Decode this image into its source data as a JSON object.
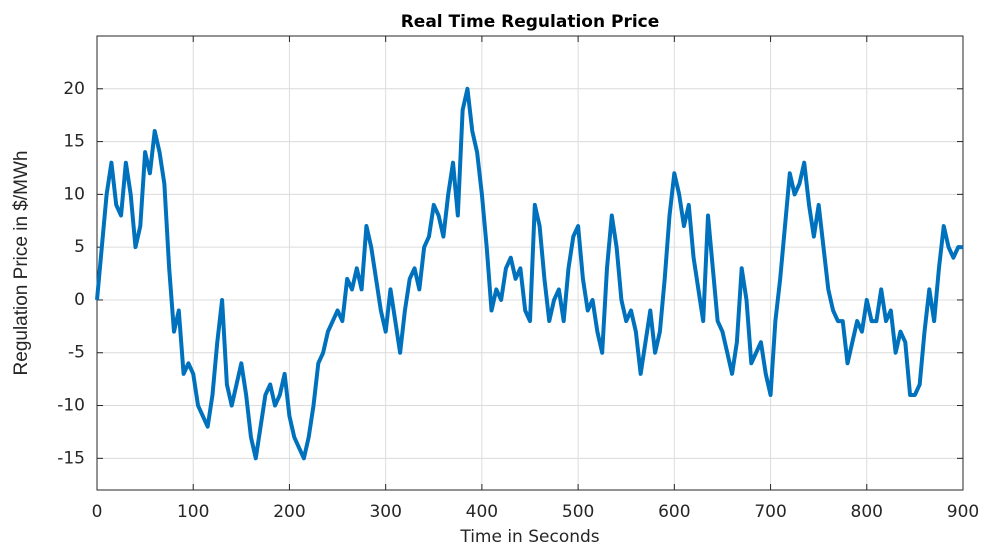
{
  "chart_data": {
    "type": "line",
    "title": "Real Time Regulation Price",
    "x_label": "Time in Seconds",
    "y_label": "Regulation Price in $/MWh",
    "x": [
      0,
      5,
      10,
      15,
      20,
      25,
      30,
      35,
      40,
      45,
      50,
      55,
      60,
      65,
      70,
      75,
      80,
      85,
      90,
      95,
      100,
      105,
      110,
      115,
      120,
      125,
      130,
      135,
      140,
      145,
      150,
      155,
      160,
      165,
      170,
      175,
      180,
      185,
      190,
      195,
      200,
      205,
      210,
      215,
      220,
      225,
      230,
      235,
      240,
      245,
      250,
      255,
      260,
      265,
      270,
      275,
      280,
      285,
      290,
      295,
      300,
      305,
      310,
      315,
      320,
      325,
      330,
      335,
      340,
      345,
      350,
      355,
      360,
      365,
      370,
      375,
      380,
      385,
      390,
      395,
      400,
      405,
      410,
      415,
      420,
      425,
      430,
      435,
      440,
      445,
      450,
      455,
      460,
      465,
      470,
      475,
      480,
      485,
      490,
      495,
      500,
      505,
      510,
      515,
      520,
      525,
      530,
      535,
      540,
      545,
      550,
      555,
      560,
      565,
      570,
      575,
      580,
      585,
      590,
      595,
      600,
      605,
      610,
      615,
      620,
      625,
      630,
      635,
      640,
      645,
      650,
      655,
      660,
      665,
      670,
      675,
      680,
      685,
      690,
      695,
      700,
      705,
      710,
      715,
      720,
      725,
      730,
      735,
      740,
      745,
      750,
      755,
      760,
      765,
      770,
      775,
      780,
      785,
      790,
      795,
      800,
      805,
      810,
      815,
      820,
      825,
      830,
      835,
      840,
      845,
      850,
      855,
      860,
      865,
      870,
      875,
      880,
      885,
      890,
      895,
      900
    ],
    "series": [
      {
        "name": "Regulation Price",
        "color": "#0072bd",
        "values": [
          0,
          5,
          10,
          13,
          9,
          8,
          13,
          10,
          5,
          7,
          14,
          12,
          16,
          14,
          11,
          3,
          -3,
          -1,
          -7,
          -6,
          -7,
          -10,
          -11,
          -12,
          -9,
          -4,
          0,
          -8,
          -10,
          -8,
          -6,
          -9,
          -13,
          -15,
          -12,
          -9,
          -8,
          -10,
          -9,
          -7,
          -11,
          -13,
          -14,
          -15,
          -13,
          -10,
          -6,
          -5,
          -3,
          -2,
          -1,
          -2,
          2,
          1,
          3,
          1,
          7,
          5,
          2,
          -1,
          -3,
          1,
          -2,
          -5,
          -1,
          2,
          3,
          1,
          5,
          6,
          9,
          8,
          6,
          10,
          13,
          8,
          18,
          20,
          16,
          14,
          10,
          5,
          -1,
          1,
          0,
          3,
          4,
          2,
          3,
          -1,
          -2,
          9,
          7,
          2,
          -2,
          0,
          1,
          -2,
          3,
          6,
          7,
          2,
          -1,
          0,
          -3,
          -5,
          3,
          8,
          5,
          0,
          -2,
          -1,
          -3,
          -7,
          -4,
          -1,
          -5,
          -3,
          2,
          8,
          12,
          10,
          7,
          9,
          4,
          1,
          -2,
          8,
          3,
          -2,
          -3,
          -5,
          -7,
          -4,
          3,
          0,
          -6,
          -5,
          -4,
          -7,
          -9,
          -2,
          2,
          7,
          12,
          10,
          11,
          13,
          9,
          6,
          9,
          5,
          1,
          -1,
          -2,
          -2,
          -6,
          -4,
          -2,
          -3,
          0,
          -2,
          -2,
          1,
          -2,
          -1,
          -5,
          -3,
          -4,
          -9,
          -9,
          -8,
          -3,
          1,
          -2,
          3,
          7,
          5,
          4,
          5,
          5
        ]
      }
    ],
    "xlim": [
      0,
      900
    ],
    "xticks": [
      0,
      100,
      200,
      300,
      400,
      500,
      600,
      700,
      800,
      900
    ],
    "ylim": [
      -18,
      25
    ],
    "yticks": [
      -15,
      -10,
      -5,
      0,
      5,
      10,
      15,
      20
    ],
    "grid": true
  }
}
